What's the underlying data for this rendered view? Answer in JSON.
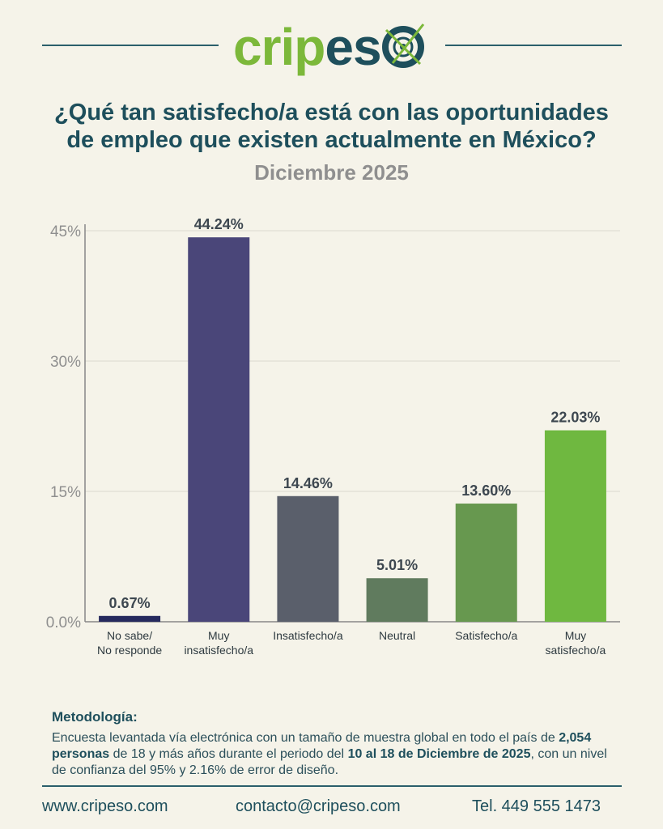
{
  "brand": {
    "logo_left": "crip",
    "logo_right": "es",
    "logo_colors": {
      "green": "#7cb83a",
      "teal": "#1e4f5c"
    }
  },
  "header": {
    "title_line1": "¿Qué tan satisfecho/a está con las oportunidades",
    "title_line2": "de empleo que existen actualmente en México?",
    "subtitle": "Diciembre 2025"
  },
  "chart_data": {
    "type": "bar",
    "categories": [
      [
        "No sabe/",
        "No responde"
      ],
      [
        "Muy",
        "insatisfecho/a"
      ],
      [
        "Insatisfecho/a"
      ],
      [
        "Neutral"
      ],
      [
        "Satisfecho/a"
      ],
      [
        "Muy",
        "satisfecho/a"
      ]
    ],
    "values": [
      0.67,
      44.24,
      14.46,
      5.01,
      13.6,
      22.03
    ],
    "value_labels": [
      "0.67%",
      "44.24%",
      "14.46%",
      "5.01%",
      "13.60%",
      "22.03%"
    ],
    "colors": [
      "#262a5e",
      "#4a4679",
      "#5a5f6b",
      "#607b5e",
      "#67984f",
      "#6fb840"
    ],
    "ylim": [
      0,
      45
    ],
    "yticks": [
      0,
      15,
      30,
      45
    ],
    "ytick_labels": [
      "0.0%",
      "15%",
      "30%",
      "45%"
    ],
    "grid": true
  },
  "methodology": {
    "title": "Metodología:",
    "text1": "Encuesta levantada vía electrónica con un tamaño de muestra global en todo el país de ",
    "bold1": "2,054 personas",
    "text2": " de 18 y más años durante el periodo del ",
    "bold2": "10 al 18 de Diciembre de 2025",
    "text3": ", con un nivel de confianza del 95% y 2.16% de error de diseño."
  },
  "footer": {
    "website": "www.cripeso.com",
    "email": "contacto@cripeso.com",
    "phone": "Tel. 449 555 1473"
  }
}
